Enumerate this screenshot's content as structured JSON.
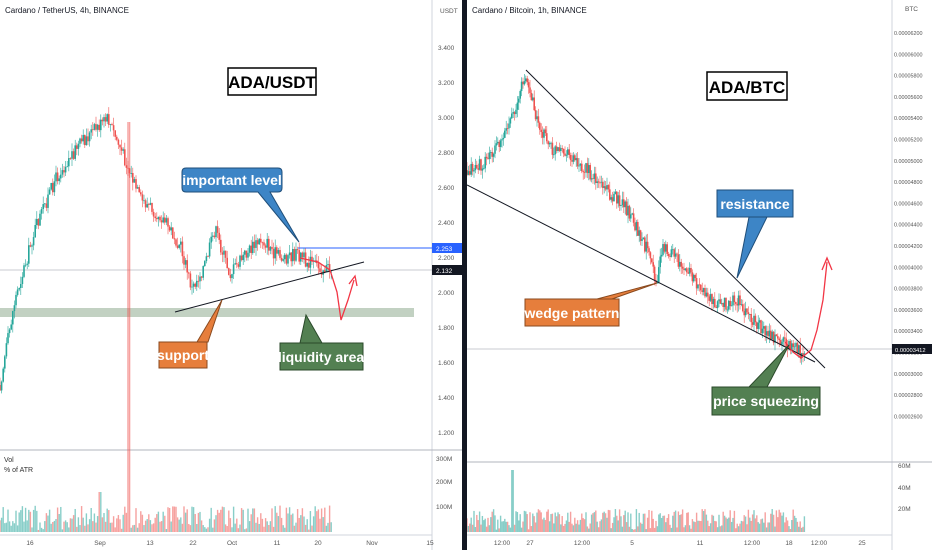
{
  "left": {
    "symbol": "Cardano / TetherUS, 4h, BINANCE",
    "currency": "USDT",
    "title": "ADA/USDT",
    "price_ticks": [
      "3.400",
      "3.200",
      "3.000",
      "2.800",
      "2.600",
      "2.400",
      "2.200",
      "2.000",
      "1.800",
      "1.600",
      "1.400",
      "1.200"
    ],
    "level_label": "2.253",
    "last_label": "2.132",
    "vol_ticks": [
      "300M",
      "200M",
      "100M"
    ],
    "vol_title": "Vol",
    "vol_sub": "% of ATR",
    "time_ticks": [
      "16",
      "Sep",
      "13",
      "22",
      "Oct",
      "11",
      "20",
      "Nov",
      "15"
    ],
    "callouts": {
      "important": "important level",
      "support": "support",
      "liquidity": "liquidity area"
    }
  },
  "right": {
    "symbol": "Cardano / Bitcoin, 1h, BINANCE",
    "currency": "BTC",
    "title": "ADA/BTC",
    "price_ticks": [
      "0.00006200",
      "0.00006000",
      "0.00005800",
      "0.00005600",
      "0.00005400",
      "0.00005200",
      "0.00005000",
      "0.00004800",
      "0.00004600",
      "0.00004400",
      "0.00004200",
      "0.00004000",
      "0.00003800",
      "0.00003600",
      "0.00003400",
      "0.00003200",
      "0.00003000",
      "0.00002800",
      "0.00002600"
    ],
    "last_label": "0.00003412",
    "vol_ticks": [
      "60M",
      "40M",
      "20M"
    ],
    "time_ticks": [
      "12:00",
      "27",
      "12:00",
      "5",
      "11",
      "12:00",
      "18",
      "12:00",
      "25"
    ],
    "callouts": {
      "resistance": "resistance",
      "wedge": "wedge pattern",
      "squeeze": "price squeezing"
    }
  },
  "colors": {
    "up": "#26a69a",
    "down": "#ef5350",
    "level_line": "#2962ff",
    "callout_blue": "#3d85c6",
    "callout_orange": "#e67e3c",
    "callout_green": "#538052",
    "liquidity_band": "#b7c9b7",
    "forecast": "#f23645"
  },
  "icons": [
    "wedge-pattern",
    "forecast-arrow"
  ]
}
